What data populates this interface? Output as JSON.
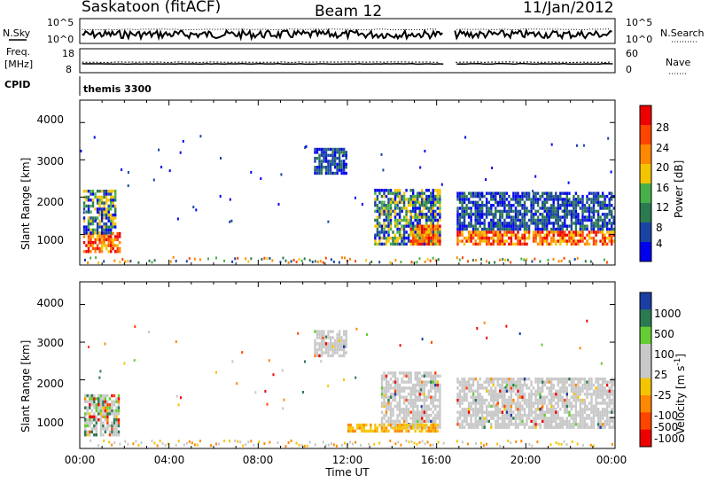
{
  "header": {
    "station": "Saskatoon (fitACF)",
    "beam": "Beam 12",
    "date": "11/Jan/2012"
  },
  "top_panels": {
    "nsky_label": "N.Sky",
    "nsky_ticks": [
      "10^5",
      "10^0"
    ],
    "nsearch_label": "N.Search",
    "nsearch_ticks": [
      "10^5",
      "10^0"
    ],
    "freq_label_1": "Freq.",
    "freq_label_2": "[MHz]",
    "freq_ticks": [
      "18",
      "8"
    ],
    "nave_label": "Nave",
    "nave_ticks": [
      "60",
      "0"
    ],
    "cpid_label": "CPID",
    "cpid_value": "themis 3300"
  },
  "axes": {
    "ylabel": "Slant Range [km]",
    "yticks": [
      "4000",
      "3000",
      "2000",
      "1000"
    ],
    "xticks": [
      "00:00",
      "04:00",
      "08:00",
      "12:00",
      "16:00",
      "20:00",
      "00:00"
    ],
    "xlabel": "Time UT"
  },
  "colorbars": {
    "power": {
      "label": "Power [dB]",
      "ticks": [
        "28",
        "24",
        "20",
        "16",
        "12",
        "8",
        "4"
      ],
      "colors": [
        "#ee0000",
        "#ff4400",
        "#ff8800",
        "#f4c400",
        "#48b048",
        "#2c7a50",
        "#1a44a4",
        "#0000ee"
      ]
    },
    "velocity": {
      "label_main": "Velocity [m s",
      "label_exp": "-1",
      "label_end": "]",
      "ticks": [
        "1000",
        "500",
        "100",
        "25",
        "-25",
        "-100",
        "-500",
        "-1000"
      ],
      "colors": [
        "#1a3ea4",
        "#2c7a50",
        "#66cc33",
        "#c8c8c8",
        "#c8c8c8",
        "#f4c400",
        "#ff8800",
        "#ff4400",
        "#ee0000"
      ]
    }
  },
  "chart_data": {
    "type": "heatmap",
    "x_range_hours": [
      0,
      24
    ],
    "y_range_km": [
      180,
      4600
    ],
    "data_gap_hours": [
      16.3,
      16.8
    ],
    "power_panel_regions": [
      {
        "t0": 0.15,
        "t1": 1.8,
        "r0": 500,
        "r1": 1000,
        "level": "high"
      },
      {
        "t0": 0.15,
        "t1": 1.6,
        "r0": 1000,
        "r1": 2200,
        "level": "medium"
      },
      {
        "t0": 10.5,
        "t1": 11.9,
        "r0": 2600,
        "r1": 3300,
        "level": "low"
      },
      {
        "t0": 13.2,
        "t1": 16.1,
        "r0": 700,
        "r1": 2200,
        "level": "medium"
      },
      {
        "t0": 14.8,
        "t1": 16.2,
        "r0": 700,
        "r1": 1200,
        "level": "high"
      },
      {
        "t0": 16.9,
        "t1": 24.0,
        "r0": 700,
        "r1": 1100,
        "level": "high"
      },
      {
        "t0": 16.9,
        "t1": 24.0,
        "r0": 1100,
        "r1": 2100,
        "level": "low"
      }
    ],
    "velocity_panel_regions": [
      {
        "t0": 0.2,
        "t1": 1.8,
        "r0": 500,
        "r1": 1600,
        "value": "mixed"
      },
      {
        "t0": 10.5,
        "t1": 11.9,
        "r0": 2600,
        "r1": 3300,
        "value": "near-zero"
      },
      {
        "t0": 13.5,
        "t1": 16.1,
        "r0": 700,
        "r1": 2200,
        "value": "near-zero"
      },
      {
        "t0": 12.0,
        "t1": 16.0,
        "r0": 600,
        "r1": 800,
        "value": "negative"
      },
      {
        "t0": 16.9,
        "t1": 24.0,
        "r0": 700,
        "r1": 2000,
        "value": "near-zero"
      }
    ]
  }
}
